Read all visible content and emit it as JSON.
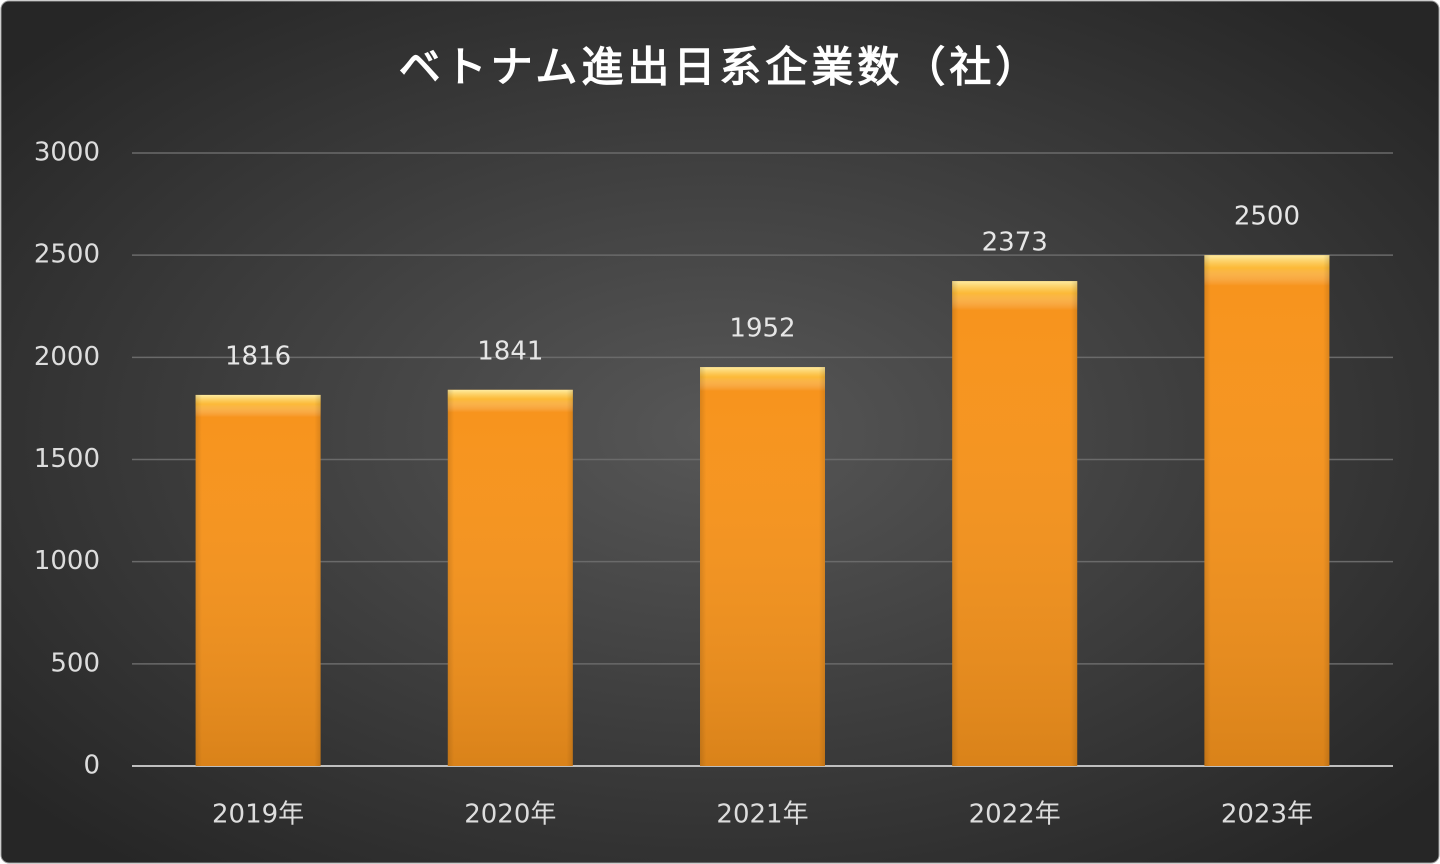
{
  "chart_data": {
    "type": "bar",
    "title": "ベトナム進出日系企業数（社）",
    "categories": [
      "2019年",
      "2020年",
      "2021年",
      "2022年",
      "2023年"
    ],
    "values": [
      1816,
      1841,
      1952,
      2373,
      2500
    ],
    "color": "#f7941d",
    "ylim": [
      0,
      3000
    ],
    "yticks": [
      0,
      500,
      1000,
      1500,
      2000,
      2500,
      3000
    ],
    "grid": true,
    "data_labels": true
  }
}
